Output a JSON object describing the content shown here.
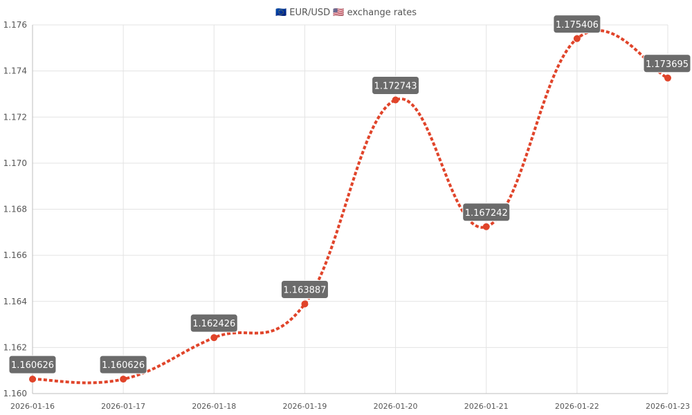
{
  "colors": {
    "series": "#e0442a",
    "label_bg": "#6b6b6b"
  },
  "chart_data": {
    "type": "line",
    "title": "🇪🇺 EUR/USD 🇺🇸 exchange rates",
    "title_icons": [
      "eu-flag-icon",
      "us-flag-icon"
    ],
    "x": [
      "2026-01-16",
      "2026-01-17",
      "2026-01-18",
      "2026-01-19",
      "2026-01-20",
      "2026-01-21",
      "2026-01-22",
      "2026-01-23"
    ],
    "series": [
      {
        "values": [
          1.160626,
          1.160626,
          1.162426,
          1.163887,
          1.172743,
          1.167242,
          1.175406,
          1.173695
        ],
        "data_labels": [
          "1.160626",
          "1.160626",
          "1.162426",
          "1.163887",
          "1.172743",
          "1.167242",
          "1.175406",
          "1.173695"
        ]
      }
    ],
    "ylim": [
      1.16,
      1.176
    ],
    "yticks": [
      "1.160",
      "1.162",
      "1.164",
      "1.166",
      "1.168",
      "1.170",
      "1.172",
      "1.174",
      "1.176"
    ],
    "grid": true,
    "legend": "none"
  }
}
